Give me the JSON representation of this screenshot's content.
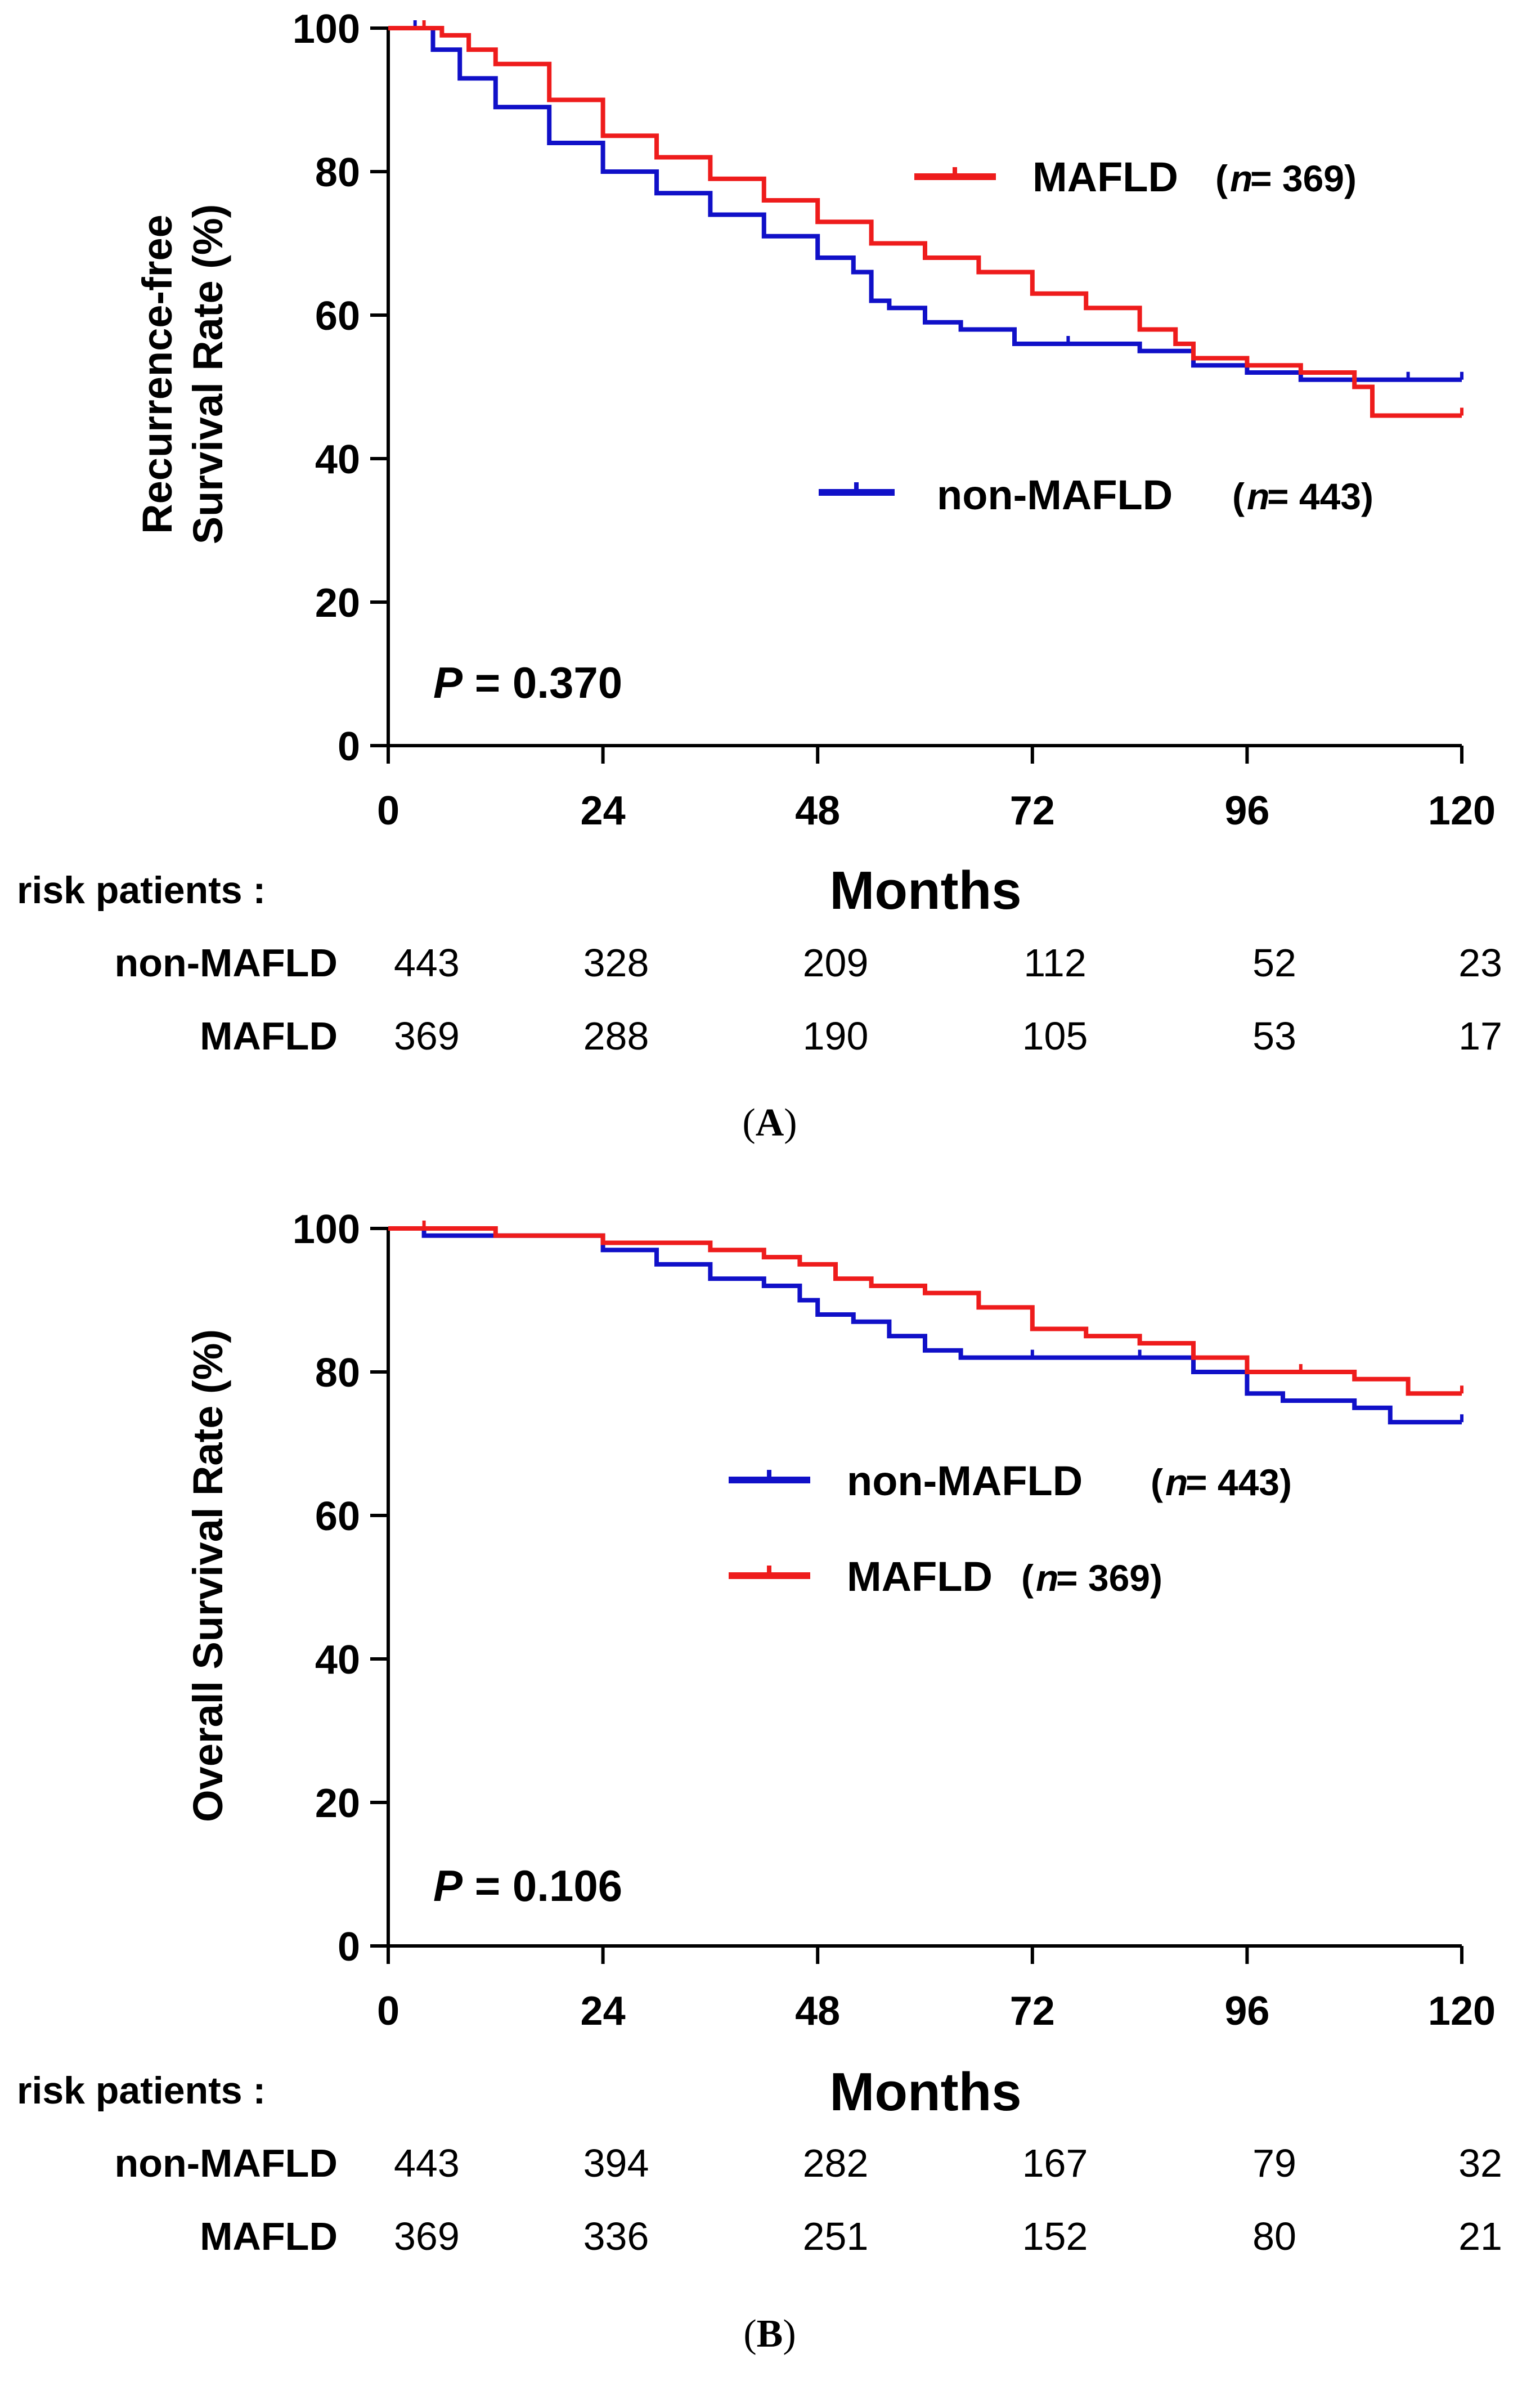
{
  "chart_data": [
    {
      "type": "line",
      "subtype": "kaplan-meier",
      "panel": "A",
      "ylabel_lines": [
        "Recurrence-free",
        "Survival Rate (%)"
      ],
      "xlabel": "Months",
      "x_ticks": [
        "0",
        "24",
        "48",
        "72",
        "96",
        "120"
      ],
      "y_ticks": [
        "0",
        "20",
        "40",
        "60",
        "80",
        "100"
      ],
      "xlim": [
        0,
        120
      ],
      "ylim": [
        0,
        100
      ],
      "p_label": "P",
      "p_value": " = 0.370",
      "legend_placement": "right",
      "series": [
        {
          "name": "non-MAFLD",
          "n_label": "n",
          "n_value": " = 443)",
          "color": "#1010c8",
          "x": [
            0,
            3,
            5,
            8,
            12,
            18,
            24,
            30,
            36,
            42,
            48,
            52,
            54,
            56,
            60,
            64,
            70,
            76,
            84,
            90,
            96,
            102,
            108,
            114,
            120
          ],
          "y": [
            100,
            100,
            97,
            93,
            89,
            84,
            80,
            77,
            74,
            71,
            68,
            66,
            62,
            61,
            59,
            58,
            56,
            56,
            55,
            53,
            52,
            51,
            51,
            51,
            51
          ]
        },
        {
          "name": "MAFLD",
          "n_label": "n",
          "n_value": " = 369)",
          "color": "#ee1c1c",
          "x": [
            0,
            4,
            6,
            9,
            12,
            18,
            24,
            30,
            36,
            42,
            48,
            54,
            60,
            66,
            72,
            78,
            84,
            88,
            90,
            96,
            102,
            108,
            110,
            120
          ],
          "y": [
            100,
            100,
            99,
            97,
            95,
            90,
            85,
            82,
            79,
            76,
            73,
            70,
            68,
            66,
            63,
            61,
            58,
            56,
            54,
            53,
            52,
            50,
            46,
            46
          ]
        }
      ],
      "risk_table": {
        "title": "risk patients :",
        "rows": [
          {
            "group": "non-MAFLD",
            "values": [
              "443",
              "328",
              "209",
              "112",
              "52",
              "23"
            ]
          },
          {
            "group": "MAFLD",
            "values": [
              "369",
              "288",
              "190",
              "105",
              "53",
              "17"
            ]
          }
        ]
      }
    },
    {
      "type": "line",
      "subtype": "kaplan-meier",
      "panel": "B",
      "ylabel_lines": [
        "Overall Survival Rate (%)"
      ],
      "xlabel": "Months",
      "x_ticks": [
        "0",
        "24",
        "48",
        "72",
        "96",
        "120"
      ],
      "y_ticks": [
        "0",
        "20",
        "40",
        "60",
        "80",
        "100"
      ],
      "xlim": [
        0,
        120
      ],
      "ylim": [
        0,
        100
      ],
      "p_label": "P",
      "p_value": " = 0.106",
      "legend_placement": "center-right",
      "series": [
        {
          "name": "non-MAFLD",
          "n_label": "n",
          "n_value": " = 443)",
          "color": "#1010c8",
          "x": [
            0,
            4,
            12,
            24,
            30,
            36,
            42,
            46,
            48,
            52,
            56,
            60,
            64,
            72,
            84,
            90,
            96,
            100,
            108,
            112,
            120
          ],
          "y": [
            100,
            99,
            99,
            97,
            95,
            93,
            92,
            90,
            88,
            87,
            85,
            83,
            82,
            82,
            82,
            80,
            77,
            76,
            75,
            73,
            73
          ]
        },
        {
          "name": "MAFLD",
          "n_label": "n",
          "n_value": " = 369)",
          "color": "#ee1c1c",
          "x": [
            0,
            4,
            12,
            24,
            36,
            42,
            46,
            50,
            54,
            60,
            66,
            72,
            78,
            84,
            90,
            96,
            102,
            108,
            114,
            120
          ],
          "y": [
            100,
            100,
            99,
            98,
            97,
            96,
            95,
            93,
            92,
            91,
            89,
            86,
            85,
            84,
            82,
            80,
            80,
            79,
            77,
            77
          ]
        }
      ],
      "risk_table": {
        "title": "risk patients :",
        "rows": [
          {
            "group": "non-MAFLD",
            "values": [
              "443",
              "394",
              "282",
              "167",
              "79",
              "32"
            ]
          },
          {
            "group": "MAFLD",
            "values": [
              "369",
              "336",
              "251",
              "152",
              "80",
              "21"
            ]
          }
        ]
      }
    }
  ]
}
